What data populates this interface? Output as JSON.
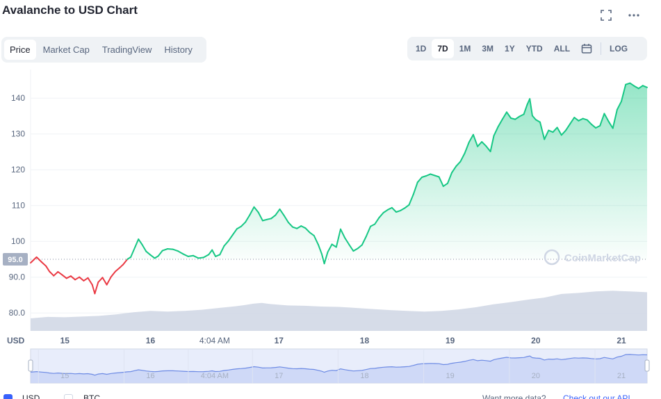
{
  "title": "Avalanche to USD Chart",
  "top_icons": [
    "fullscreen-icon",
    "more-icon"
  ],
  "tabs_left": [
    {
      "label": "Price",
      "active": true
    },
    {
      "label": "Market Cap",
      "active": false
    },
    {
      "label": "TradingView",
      "active": false
    },
    {
      "label": "History",
      "active": false
    }
  ],
  "tabs_right": [
    {
      "label": "1D",
      "active": false
    },
    {
      "label": "7D",
      "active": true
    },
    {
      "label": "1M",
      "active": false
    },
    {
      "label": "3M",
      "active": false
    },
    {
      "label": "1Y",
      "active": false
    },
    {
      "label": "YTD",
      "active": false
    },
    {
      "label": "ALL",
      "active": false
    },
    {
      "label": "",
      "icon": "calendar-icon",
      "active": false
    },
    {
      "label": "LOG",
      "active": false
    }
  ],
  "watermark": "CoinMarketCap",
  "legend": {
    "usd_label": "USD",
    "btc_label": "BTC",
    "api_text": "Want more data?",
    "api_link": "Check out our API"
  },
  "colors": {
    "up": "#16c784",
    "down": "#ea3943",
    "volume": "#cfd6e4",
    "navigator": "#6c8ae4"
  },
  "chart_data": {
    "type": "line",
    "currency_label": "USD",
    "reference_price": 95.0,
    "reference_label": "95.0",
    "yticks": [
      80.0,
      90.0,
      100,
      110,
      120,
      130,
      140
    ],
    "ytick_labels": [
      "80.0",
      "90.0",
      "100",
      "110",
      "120",
      "130",
      "140"
    ],
    "ylim": [
      75,
      148
    ],
    "xlim": [
      14.6,
      21.8
    ],
    "xticks": [
      {
        "label": "15",
        "x": 15.0
      },
      {
        "label": "16",
        "x": 16.0
      },
      {
        "label": "4:04 AM",
        "x": 16.75
      },
      {
        "label": "17",
        "x": 17.5
      },
      {
        "label": "18",
        "x": 18.5
      },
      {
        "label": "19",
        "x": 19.5
      },
      {
        "label": "20",
        "x": 20.5
      },
      {
        "label": "21",
        "x": 21.5
      }
    ],
    "series": [
      {
        "points": [
          [
            14.6,
            94.0
          ],
          [
            14.67,
            95.6
          ],
          [
            14.73,
            94.2
          ],
          [
            14.78,
            93.1
          ],
          [
            14.82,
            91.6
          ],
          [
            14.87,
            90.4
          ],
          [
            14.92,
            91.5
          ],
          [
            14.97,
            90.6
          ],
          [
            15.02,
            89.7
          ],
          [
            15.07,
            90.3
          ],
          [
            15.12,
            89.3
          ],
          [
            15.17,
            90.0
          ],
          [
            15.22,
            89.0
          ],
          [
            15.27,
            89.8
          ],
          [
            15.32,
            87.9
          ],
          [
            15.35,
            85.4
          ],
          [
            15.39,
            88.6
          ],
          [
            15.44,
            89.9
          ],
          [
            15.49,
            87.9
          ],
          [
            15.54,
            90.1
          ],
          [
            15.59,
            91.6
          ],
          [
            15.64,
            92.6
          ],
          [
            15.68,
            93.5
          ],
          [
            15.73,
            95.0
          ],
          [
            15.77,
            95.6
          ],
          [
            15.82,
            98.4
          ],
          [
            15.86,
            100.6
          ],
          [
            15.9,
            99.2
          ],
          [
            15.95,
            97.2
          ],
          [
            16.0,
            96.2
          ],
          [
            16.05,
            95.3
          ],
          [
            16.09,
            95.9
          ],
          [
            16.14,
            97.4
          ],
          [
            16.2,
            97.9
          ],
          [
            16.26,
            97.8
          ],
          [
            16.32,
            97.3
          ],
          [
            16.38,
            96.5
          ],
          [
            16.44,
            95.8
          ],
          [
            16.5,
            96.0
          ],
          [
            16.56,
            95.3
          ],
          [
            16.62,
            95.5
          ],
          [
            16.68,
            96.3
          ],
          [
            16.72,
            97.6
          ],
          [
            16.76,
            95.8
          ],
          [
            16.81,
            96.3
          ],
          [
            16.86,
            98.7
          ],
          [
            16.91,
            100.1
          ],
          [
            16.96,
            101.8
          ],
          [
            17.01,
            103.5
          ],
          [
            17.06,
            104.2
          ],
          [
            17.11,
            105.4
          ],
          [
            17.16,
            107.4
          ],
          [
            17.21,
            109.6
          ],
          [
            17.26,
            108.1
          ],
          [
            17.31,
            105.8
          ],
          [
            17.36,
            106.1
          ],
          [
            17.41,
            106.4
          ],
          [
            17.46,
            107.3
          ],
          [
            17.51,
            109.0
          ],
          [
            17.56,
            107.2
          ],
          [
            17.61,
            105.3
          ],
          [
            17.66,
            104.0
          ],
          [
            17.71,
            103.6
          ],
          [
            17.76,
            104.3
          ],
          [
            17.81,
            103.7
          ],
          [
            17.86,
            102.5
          ],
          [
            17.91,
            101.6
          ],
          [
            17.96,
            99.1
          ],
          [
            18.0,
            96.5
          ],
          [
            18.03,
            93.8
          ],
          [
            18.07,
            97.0
          ],
          [
            18.12,
            99.2
          ],
          [
            18.17,
            98.4
          ],
          [
            18.22,
            103.4
          ],
          [
            18.27,
            101.0
          ],
          [
            18.32,
            99.1
          ],
          [
            18.37,
            97.3
          ],
          [
            18.42,
            98.0
          ],
          [
            18.47,
            99.0
          ],
          [
            18.52,
            101.4
          ],
          [
            18.57,
            104.2
          ],
          [
            18.62,
            104.8
          ],
          [
            18.67,
            106.6
          ],
          [
            18.72,
            108.0
          ],
          [
            18.77,
            108.8
          ],
          [
            18.82,
            109.4
          ],
          [
            18.87,
            108.2
          ],
          [
            18.92,
            108.6
          ],
          [
            18.97,
            109.3
          ],
          [
            19.02,
            110.2
          ],
          [
            19.07,
            113.1
          ],
          [
            19.12,
            116.5
          ],
          [
            19.17,
            117.9
          ],
          [
            19.22,
            118.3
          ],
          [
            19.27,
            118.8
          ],
          [
            19.32,
            118.4
          ],
          [
            19.37,
            118.0
          ],
          [
            19.42,
            115.4
          ],
          [
            19.47,
            116.2
          ],
          [
            19.52,
            119.2
          ],
          [
            19.57,
            121.0
          ],
          [
            19.62,
            122.3
          ],
          [
            19.67,
            124.6
          ],
          [
            19.72,
            127.7
          ],
          [
            19.77,
            129.8
          ],
          [
            19.82,
            126.5
          ],
          [
            19.87,
            127.8
          ],
          [
            19.92,
            126.6
          ],
          [
            19.97,
            125.1
          ],
          [
            20.01,
            129.5
          ],
          [
            20.06,
            132.0
          ],
          [
            20.11,
            134.1
          ],
          [
            20.16,
            136.1
          ],
          [
            20.21,
            134.4
          ],
          [
            20.26,
            134.1
          ],
          [
            20.31,
            134.9
          ],
          [
            20.36,
            135.5
          ],
          [
            20.4,
            138.2
          ],
          [
            20.43,
            139.8
          ],
          [
            20.46,
            135.1
          ],
          [
            20.5,
            134.0
          ],
          [
            20.55,
            133.3
          ],
          [
            20.6,
            128.5
          ],
          [
            20.65,
            131.0
          ],
          [
            20.7,
            130.5
          ],
          [
            20.75,
            131.8
          ],
          [
            20.8,
            129.7
          ],
          [
            20.85,
            131.0
          ],
          [
            20.9,
            132.8
          ],
          [
            20.95,
            134.6
          ],
          [
            21.0,
            133.7
          ],
          [
            21.05,
            134.3
          ],
          [
            21.1,
            133.9
          ],
          [
            21.15,
            132.7
          ],
          [
            21.2,
            131.7
          ],
          [
            21.25,
            132.3
          ],
          [
            21.3,
            135.7
          ],
          [
            21.35,
            133.5
          ],
          [
            21.4,
            131.6
          ],
          [
            21.45,
            136.8
          ],
          [
            21.5,
            139.1
          ],
          [
            21.55,
            143.8
          ],
          [
            21.6,
            144.2
          ],
          [
            21.65,
            143.4
          ],
          [
            21.7,
            142.7
          ],
          [
            21.75,
            143.5
          ],
          [
            21.8,
            143.0
          ]
        ]
      }
    ],
    "volume_series": {
      "points": [
        [
          14.6,
          78.5
        ],
        [
          14.8,
          78.9
        ],
        [
          15.0,
          78.8
        ],
        [
          15.2,
          79.0
        ],
        [
          15.4,
          79.2
        ],
        [
          15.6,
          79.6
        ],
        [
          15.8,
          80.2
        ],
        [
          16.0,
          80.6
        ],
        [
          16.2,
          80.4
        ],
        [
          16.4,
          80.6
        ],
        [
          16.6,
          80.9
        ],
        [
          16.8,
          81.4
        ],
        [
          17.0,
          81.9
        ],
        [
          17.1,
          82.2
        ],
        [
          17.2,
          82.6
        ],
        [
          17.3,
          82.8
        ],
        [
          17.4,
          82.5
        ],
        [
          17.6,
          82.1
        ],
        [
          17.8,
          82.0
        ],
        [
          18.0,
          81.8
        ],
        [
          18.2,
          81.7
        ],
        [
          18.4,
          81.4
        ],
        [
          18.6,
          81.1
        ],
        [
          18.8,
          80.8
        ],
        [
          19.0,
          80.6
        ],
        [
          19.2,
          80.4
        ],
        [
          19.4,
          80.6
        ],
        [
          19.6,
          81.0
        ],
        [
          19.8,
          81.6
        ],
        [
          20.0,
          82.4
        ],
        [
          20.2,
          83.0
        ],
        [
          20.4,
          83.7
        ],
        [
          20.6,
          84.3
        ],
        [
          20.8,
          85.3
        ],
        [
          21.0,
          85.6
        ],
        [
          21.2,
          86.0
        ],
        [
          21.4,
          86.2
        ],
        [
          21.6,
          86.0
        ],
        [
          21.8,
          85.8
        ]
      ]
    }
  }
}
